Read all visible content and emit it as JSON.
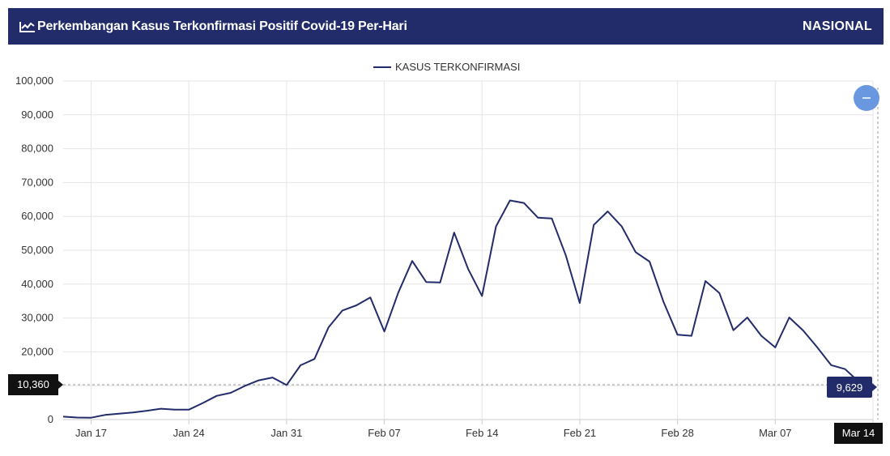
{
  "header": {
    "title": "Perkembangan Kasus Terkonfirmasi Positif Covid-19 Per-Hari",
    "scope": "NASIONAL",
    "icon": "line-chart-icon"
  },
  "colors": {
    "header_bg": "#232c6b",
    "series": "#232c6b",
    "zoom_button": "#6a98e0",
    "tooltip_dark": "#111111"
  },
  "zoom_button": {
    "icon": "minus-icon"
  },
  "crosshair": {
    "y_label": "10,360",
    "x_label": "Mar 14",
    "point_label": "9,629"
  },
  "chart_data": {
    "type": "line",
    "legend": "top-center",
    "grid": true,
    "series": [
      {
        "name": "KASUS TERKONFIRMASI",
        "x": [
          "2022-01-15",
          "2022-01-16",
          "2022-01-17",
          "2022-01-18",
          "2022-01-19",
          "2022-01-20",
          "2022-01-21",
          "2022-01-22",
          "2022-01-23",
          "2022-01-24",
          "2022-01-25",
          "2022-01-26",
          "2022-01-27",
          "2022-01-28",
          "2022-01-29",
          "2022-01-30",
          "2022-01-31",
          "2022-02-01",
          "2022-02-02",
          "2022-02-03",
          "2022-02-04",
          "2022-02-05",
          "2022-02-06",
          "2022-02-07",
          "2022-02-08",
          "2022-02-09",
          "2022-02-10",
          "2022-02-11",
          "2022-02-12",
          "2022-02-13",
          "2022-02-14",
          "2022-02-15",
          "2022-02-16",
          "2022-02-17",
          "2022-02-18",
          "2022-02-19",
          "2022-02-20",
          "2022-02-21",
          "2022-02-22",
          "2022-02-23",
          "2022-02-24",
          "2022-02-25",
          "2022-02-26",
          "2022-02-27",
          "2022-02-28",
          "2022-03-01",
          "2022-03-02",
          "2022-03-03",
          "2022-03-04",
          "2022-03-05",
          "2022-03-06",
          "2022-03-07",
          "2022-03-08",
          "2022-03-09",
          "2022-03-10",
          "2022-03-11",
          "2022-03-12",
          "2022-03-13",
          "2022-03-14"
        ],
        "values": [
          855,
          610,
          550,
          1360,
          1745,
          2115,
          2605,
          3205,
          2925,
          2925,
          4880,
          7010,
          7905,
          9905,
          11590,
          12425,
          10185,
          16020,
          17895,
          27195,
          32210,
          33730,
          36055,
          26000,
          37490,
          46840,
          40625,
          40490,
          55210,
          44525,
          36500,
          57050,
          64720,
          63960,
          59635,
          59384,
          48485,
          34415,
          57490,
          61490,
          57055,
          49445,
          46640,
          34705,
          25055,
          24730,
          40920,
          37375,
          26395,
          30145,
          24730,
          21310,
          30150,
          26285,
          21395,
          16085,
          14905,
          11100,
          9629
        ]
      }
    ],
    "y_ticks": [
      "0",
      "10,000",
      "20,000",
      "30,000",
      "40,000",
      "50,000",
      "60,000",
      "70,000",
      "80,000",
      "90,000",
      "100,000"
    ],
    "x_ticks": [
      "Jan 17",
      "Jan 24",
      "Jan 31",
      "Feb 07",
      "Feb 14",
      "Feb 21",
      "Feb 28",
      "Mar 07",
      "Mar 14"
    ],
    "ylim": [
      0,
      100000
    ],
    "xlim": [
      "2022-01-15",
      "2022-03-14"
    ]
  }
}
